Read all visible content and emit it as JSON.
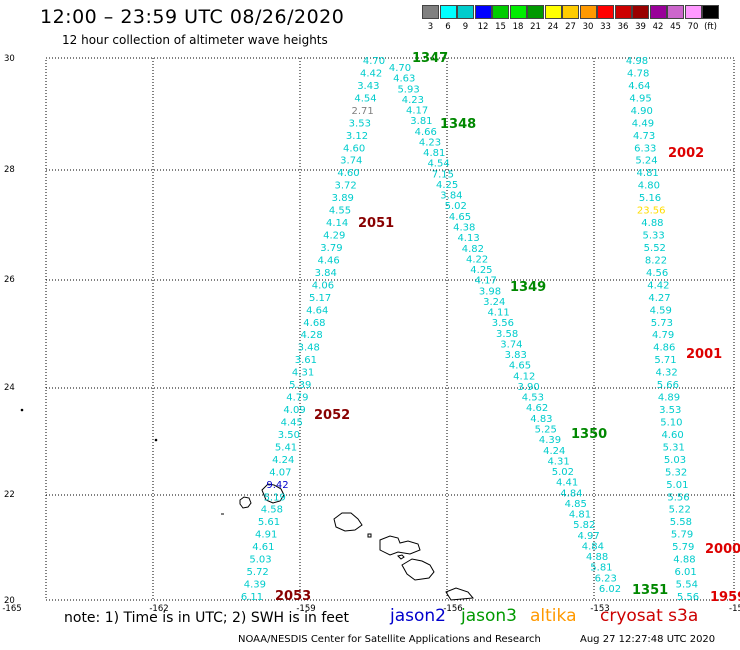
{
  "header": {
    "title": "12:00 – 23:59 UTC 08/26/2020",
    "subtitle": "12 hour collection of altimeter wave heights"
  },
  "legend": {
    "colors": [
      "#808080",
      "#00ffff",
      "#00cccc",
      "#0000ff",
      "#00cc00",
      "#00ee00",
      "#009900",
      "#ffff00",
      "#ffcc00",
      "#ff9900",
      "#ff0000",
      "#cc0000",
      "#990000",
      "#990099",
      "#cc66cc",
      "#ff99ff",
      "#000000"
    ],
    "labels": [
      "3",
      "6",
      "9",
      "12",
      "15",
      "18",
      "21",
      "24",
      "27",
      "30",
      "33",
      "36",
      "39",
      "42",
      "45",
      "70",
      "(ft)"
    ]
  },
  "axes": {
    "y_ticks": [
      "30",
      "28",
      "26",
      "24",
      "22",
      "20"
    ],
    "x_ticks": [
      "-165",
      "-162",
      "-159",
      "-156",
      "-153",
      "-15"
    ]
  },
  "tracks": {
    "jason3_2053_2052_2051": [
      [
        "4.70",
        "4.42",
        "3.43",
        "4.54",
        "2.71",
        "3.53",
        "3.12",
        "4.60",
        "3.74",
        "4.60",
        "3.72",
        "3.89",
        "4.55",
        "4.14",
        "4.29",
        "3.79",
        "4.46",
        "3.84",
        "4.06",
        "5.17",
        "4.64",
        "4.68",
        "4.28",
        "3.48",
        "3.61",
        "4.31",
        "5.39",
        "4.79",
        "4.09",
        "4.45",
        "3.50",
        "5.41",
        "4.24",
        "4.07",
        "9.42",
        "5.19",
        "4.58",
        "5.61",
        "4.91",
        "4.61",
        "5.03",
        "5.72",
        "4.39",
        "6.11"
      ]
    ],
    "jason3_1347_1351": [
      [
        "4.70",
        "4.63",
        "5.93",
        "4.23",
        "4.17",
        "3.81",
        "4.66",
        "4.23",
        "4.81",
        "4.54",
        "7.15",
        "4.25",
        "3.84",
        "5.02",
        "4.65",
        "4.38",
        "4.13",
        "4.82",
        "4.22",
        "4.25",
        "4.17",
        "3.98",
        "3.24",
        "4.11",
        "3.56",
        "3.58",
        "3.74",
        "3.83",
        "4.65",
        "4.12",
        "3.90",
        "4.53",
        "4.62",
        "4.83",
        "5.25",
        "4.39",
        "4.24",
        "4.31",
        "5.02",
        "4.41",
        "4.84",
        "4.85",
        "4.81",
        "5.82",
        "4.97",
        "4.84",
        "4.88",
        "5.81",
        "6.23",
        "6.02"
      ]
    ],
    "cryosat_2002_2000": [
      [
        "4.98",
        "4.78",
        "4.64",
        "4.95",
        "4.90",
        "4.49",
        "4.73",
        "6.33",
        "5.24",
        "4.81",
        "4.80",
        "5.16",
        "23.56",
        "4.88",
        "5.33",
        "5.52",
        "8.22",
        "4.56",
        "4.42",
        "4.27",
        "4.59",
        "5.73",
        "4.79",
        "4.86",
        "5.71",
        "4.32",
        "5.66",
        "4.89",
        "3.53",
        "5.10",
        "4.60",
        "5.31",
        "5.03",
        "5.32",
        "5.01",
        "5.56",
        "5.22",
        "5.58",
        "5.79",
        "5.79",
        "4.88",
        "6.01",
        "5.54",
        "5.56"
      ]
    ]
  },
  "pass_labels": {
    "p1347": "1347",
    "p1348": "1348",
    "p1349": "1349",
    "p1350": "1350",
    "p1351": "1351",
    "p2051": "2051",
    "p2052": "2052",
    "p2053": "2053",
    "p2002": "2002",
    "p2001": "2001",
    "p2000": "2000",
    "p1959": "1959"
  },
  "footer": {
    "note": "note: 1) Time is in UTC; 2) SWH is in feet",
    "satellites": [
      "jason2",
      "jason3",
      "altika",
      "cryosat s3a"
    ],
    "satellite_colors": [
      "#0000cc",
      "#009900",
      "#ff9900",
      "#cc0000"
    ],
    "credit": "NOAA/NESDIS Center for Satellite Applications and Research",
    "timestamp": "Aug 27 12:27:48 UTC 2020"
  },
  "colors": {
    "cyan": "#00cccc",
    "grey": "#808080",
    "blue": "#0000cc",
    "yellow": "#ffdd00",
    "pass_green": "#008800",
    "pass_darkred": "#880000",
    "pass_red": "#dd0000"
  }
}
